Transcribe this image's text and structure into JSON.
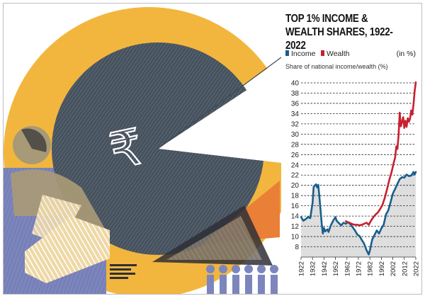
{
  "chart_data": {
    "type": "line",
    "title": "TOP 1% INCOME & WEALTH SHARES, 1922-2022",
    "unit_note": "(in %)",
    "ylabel": "Share of national income/wealth (%)",
    "xlabel": "",
    "xlim": [
      1922,
      2022
    ],
    "ylim": [
      6,
      40
    ],
    "y_ticks": [
      8,
      10,
      12,
      14,
      16,
      18,
      20,
      22,
      24,
      26,
      28,
      30,
      32,
      34,
      36,
      38,
      40
    ],
    "x_ticks": [
      1922,
      1932,
      1942,
      1952,
      1962,
      1972,
      1982,
      1992,
      2002,
      2012,
      2022
    ],
    "grid": true,
    "legend_position": "top",
    "series": [
      {
        "name": "Income",
        "color": "#1a5e8c",
        "points": [
          [
            1922,
            13.8
          ],
          [
            1924,
            13.1
          ],
          [
            1926,
            13.4
          ],
          [
            1928,
            13.8
          ],
          [
            1930,
            13.6
          ],
          [
            1932,
            16.5
          ],
          [
            1933,
            19.7
          ],
          [
            1935,
            20.2
          ],
          [
            1936,
            19.6
          ],
          [
            1937,
            20.1
          ],
          [
            1938,
            17.8
          ],
          [
            1940,
            12.5
          ],
          [
            1941,
            10.6
          ],
          [
            1942,
            11.7
          ],
          [
            1943,
            11.0
          ],
          [
            1945,
            11.4
          ],
          [
            1946,
            10.9
          ],
          [
            1947,
            11.6
          ],
          [
            1948,
            12.2
          ],
          [
            1950,
            13.1
          ],
          [
            1952,
            13.8
          ],
          [
            1953,
            13.1
          ],
          [
            1955,
            12.6
          ],
          [
            1957,
            12.2
          ],
          [
            1959,
            12.7
          ],
          [
            1961,
            12.5
          ],
          [
            1963,
            12.8
          ],
          [
            1965,
            12.4
          ],
          [
            1967,
            11.8
          ],
          [
            1969,
            11.2
          ],
          [
            1971,
            10.4
          ],
          [
            1973,
            10.1
          ],
          [
            1975,
            9.3
          ],
          [
            1977,
            8.6
          ],
          [
            1979,
            7.4
          ],
          [
            1981,
            6.5
          ],
          [
            1982,
            7.3
          ],
          [
            1984,
            9.4
          ],
          [
            1986,
            10.3
          ],
          [
            1988,
            11.2
          ],
          [
            1990,
            10.6
          ],
          [
            1992,
            11.6
          ],
          [
            1994,
            12.3
          ],
          [
            1996,
            14.3
          ],
          [
            1998,
            15.1
          ],
          [
            2000,
            16.7
          ],
          [
            2002,
            18.4
          ],
          [
            2004,
            19.3
          ],
          [
            2006,
            20.3
          ],
          [
            2008,
            21.2
          ],
          [
            2010,
            21.6
          ],
          [
            2012,
            21.5
          ],
          [
            2014,
            22.1
          ],
          [
            2016,
            21.8
          ],
          [
            2018,
            21.9
          ],
          [
            2020,
            22.6
          ],
          [
            2021,
            22.1
          ],
          [
            2022,
            22.6
          ]
        ]
      },
      {
        "name": "Wealth",
        "color": "#c8202f",
        "points": [
          [
            1961,
            13.0
          ],
          [
            1963,
            12.8
          ],
          [
            1965,
            12.6
          ],
          [
            1967,
            12.4
          ],
          [
            1969,
            12.3
          ],
          [
            1971,
            12.3
          ],
          [
            1973,
            12.2
          ],
          [
            1975,
            12.3
          ],
          [
            1977,
            12.5
          ],
          [
            1979,
            12.7
          ],
          [
            1981,
            12.3
          ],
          [
            1983,
            13.1
          ],
          [
            1985,
            13.8
          ],
          [
            1987,
            14.3
          ],
          [
            1989,
            14.7
          ],
          [
            1991,
            15.4
          ],
          [
            1993,
            16.2
          ],
          [
            1995,
            17.6
          ],
          [
            1997,
            19.3
          ],
          [
            1999,
            21.1
          ],
          [
            2001,
            22.7
          ],
          [
            2003,
            24.6
          ],
          [
            2004,
            25.4
          ],
          [
            2005,
            27.6
          ],
          [
            2006,
            27.1
          ],
          [
            2007,
            29.8
          ],
          [
            2008,
            34.2
          ],
          [
            2009,
            31.5
          ],
          [
            2010,
            32.4
          ],
          [
            2011,
            33.3
          ],
          [
            2012,
            31.2
          ],
          [
            2013,
            32.6
          ],
          [
            2014,
            31.4
          ],
          [
            2015,
            33.1
          ],
          [
            2016,
            32.4
          ],
          [
            2017,
            33.0
          ],
          [
            2018,
            34.6
          ],
          [
            2019,
            33.8
          ],
          [
            2020,
            35.8
          ],
          [
            2021,
            38.4
          ],
          [
            2022,
            40.1
          ]
        ]
      }
    ]
  },
  "illustration": {
    "rupee_symbol": "₹",
    "colors": {
      "yellow": "#f2b63e",
      "slate": "#3f4a56",
      "blue": "#7c86bd",
      "olive": "#a89a76",
      "orange": "#ea7f37",
      "dark": "#2f2f36",
      "chart_fill": "#dedede",
      "grid": "#1f1f1f"
    }
  }
}
